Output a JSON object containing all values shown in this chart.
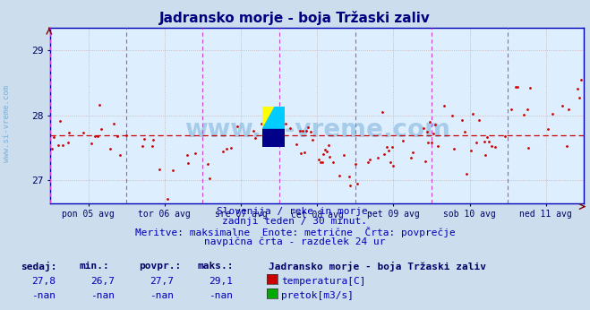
{
  "title": "Jadransko morje - boja Tržaski zaliv",
  "title_color": "#000080",
  "bg_color": "#ccdded",
  "plot_bg_color": "#ddeeff",
  "xlabel_days": [
    "pon 05 avg",
    "tor 06 avg",
    "sre 07 avg",
    "čet 08 avg",
    "pet 09 avg",
    "sob 10 avg",
    "ned 11 avg"
  ],
  "ylabel_temps": [
    27,
    28,
    29
  ],
  "ylim": [
    26.65,
    29.35
  ],
  "xlim": [
    0,
    336
  ],
  "avg_line_y": 27.7,
  "avg_line_color": "#cc0000",
  "grid_color": "#ccaaaa",
  "vline_color": "#cc44cc",
  "axis_color": "#0000bb",
  "tick_color": "#000066",
  "watermark_text": "www.si-vreme.com",
  "watermark_color": "#5599cc",
  "watermark_alpha": 0.4,
  "sub_text1": "Slovenija / reke in morje.",
  "sub_text2": "zadnji teden / 30 minut.",
  "sub_text3": "Meritve: maksimalne  Enote: metrične  Črta: povprečje",
  "sub_text4": "navpična črta - razdelek 24 ur",
  "sub_text_color": "#0000bb",
  "footer_header": "Jadransko morje - boja Tržaski zaliv",
  "footer_header_color": "#000066",
  "col_headers": [
    "sedaj:",
    "min.:",
    "povpr.:",
    "maks.:"
  ],
  "col_values_temp": [
    "27,8",
    "26,7",
    "27,7",
    "29,1"
  ],
  "col_values_flow": [
    "-nan",
    "-nan",
    "-nan",
    "-nan"
  ],
  "legend_temp": "temperatura[C]",
  "legend_flow": "pretok[m3/s]",
  "legend_temp_color": "#cc0000",
  "legend_flow_color": "#00aa00",
  "footer_col_color": "#000066",
  "footer_val_color": "#0000bb",
  "num_points": 336,
  "seed": 42
}
